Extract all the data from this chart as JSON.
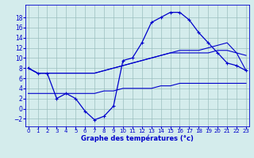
{
  "title": "Graphe des températures (°c)",
  "background_color": "#d4ecec",
  "grid_color": "#9bbfbf",
  "line_color": "#0000cc",
  "xlabel_color": "#0000cc",
  "x_ticks": [
    0,
    1,
    2,
    3,
    4,
    5,
    6,
    7,
    8,
    9,
    10,
    11,
    12,
    13,
    14,
    15,
    16,
    17,
    18,
    19,
    20,
    21,
    22,
    23
  ],
  "y_ticks": [
    -2,
    0,
    2,
    4,
    6,
    8,
    10,
    12,
    14,
    16,
    18
  ],
  "ylim": [
    -3.5,
    20.5
  ],
  "xlim": [
    -0.3,
    23.3
  ],
  "series": [
    {
      "x": [
        0,
        1,
        2,
        3,
        4,
        5,
        6,
        7,
        8,
        9,
        10,
        11,
        12,
        13,
        14,
        15,
        16,
        17,
        18,
        19,
        20,
        21,
        22,
        23
      ],
      "y": [
        8,
        7,
        7,
        2,
        3,
        2,
        -0.5,
        -2.2,
        -1.5,
        0.5,
        9.5,
        10,
        13,
        17,
        18,
        19,
        19,
        17.5,
        15,
        13,
        11,
        9,
        8.5,
        7.5
      ]
    },
    {
      "x": [
        0,
        1,
        2,
        3,
        4,
        5,
        6,
        7,
        8,
        9,
        10,
        11,
        12,
        13,
        14,
        15,
        16,
        17,
        18,
        19,
        20,
        21,
        22,
        23
      ],
      "y": [
        8,
        7,
        7,
        7,
        7,
        7,
        7,
        7,
        7.5,
        8,
        8.5,
        9,
        9.5,
        10,
        10.5,
        11,
        11.5,
        11.5,
        11.5,
        12,
        12.5,
        13,
        11,
        7.5
      ]
    },
    {
      "x": [
        0,
        1,
        2,
        3,
        4,
        5,
        6,
        7,
        8,
        9,
        10,
        11,
        12,
        13,
        14,
        15,
        16,
        17,
        18,
        19,
        20,
        21,
        22,
        23
      ],
      "y": [
        8,
        7,
        7,
        7,
        7,
        7,
        7,
        7,
        7.5,
        8,
        8.5,
        9,
        9.5,
        10,
        10.5,
        11,
        11,
        11,
        11,
        11,
        11.5,
        11.5,
        11,
        10.5
      ]
    },
    {
      "x": [
        0,
        1,
        2,
        3,
        4,
        5,
        6,
        7,
        8,
        9,
        10,
        11,
        12,
        13,
        14,
        15,
        16,
        17,
        18,
        19,
        20,
        21,
        22,
        23
      ],
      "y": [
        3,
        3,
        3,
        3,
        3,
        3,
        3,
        3,
        3.5,
        3.5,
        4,
        4,
        4,
        4,
        4.5,
        4.5,
        5,
        5,
        5,
        5,
        5,
        5,
        5,
        5
      ]
    }
  ]
}
